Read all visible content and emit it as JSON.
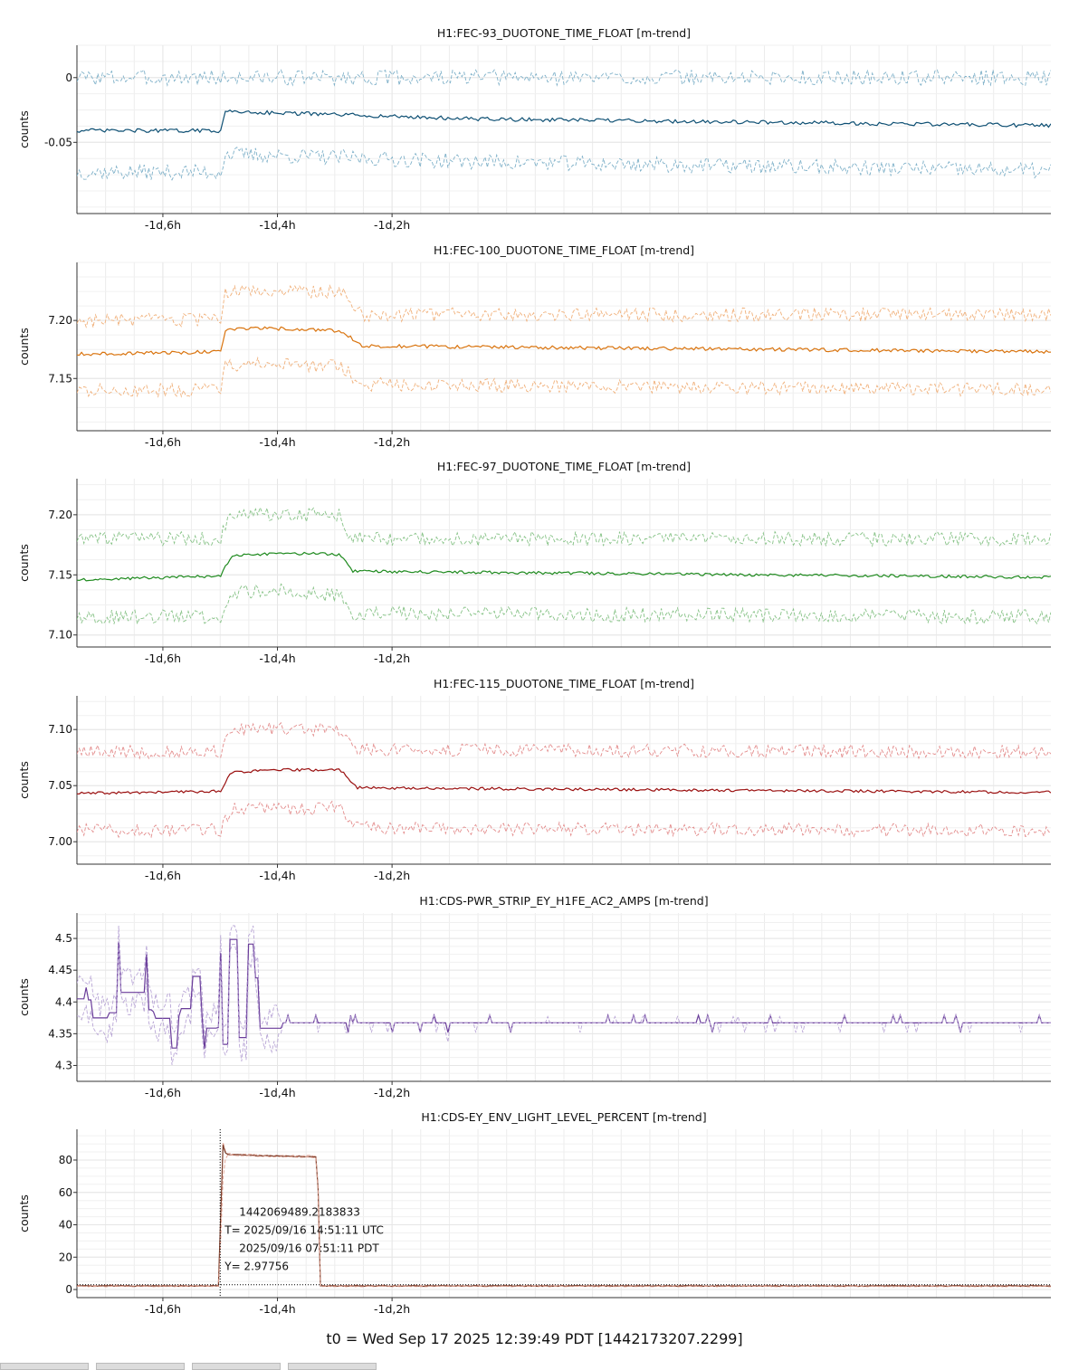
{
  "footer_text": "t0 = Wed Sep 17 2025 12:39:49 PDT [1442173207.2299]",
  "colors": {
    "grid": "#e6e6e6",
    "axis": "#333333",
    "crosshair": "#000000"
  },
  "cursor": {
    "gps": "1442069489.2183833",
    "utc": "T= 2025/09/16 14:51:11 UTC",
    "pdt": "2025/09/16 07:51:11 PDT",
    "y": "Y= 2.97756",
    "x_hours": -1.5,
    "y_value": 2.97756
  },
  "chart_data": [
    {
      "type": "line",
      "title": "H1:FEC-93_DUOTONE_TIME_FLOAT [m-trend]",
      "ylabel": "counts",
      "xlim": [
        -1.75,
        -0.05
      ],
      "ylim": [
        -0.105,
        0.025
      ],
      "yticks": [
        0,
        -0.05
      ],
      "ytick_labels": [
        "0",
        "-0.05"
      ],
      "xticks": [
        -1.6,
        -1.4,
        -1.2
      ],
      "xtick_labels": [
        "-1d,6h",
        "-1d,4h",
        "-1d,2h"
      ],
      "grid": true,
      "pattern": "step",
      "series": [
        {
          "role": "max",
          "color": "#7fb1c9",
          "dashed": true,
          "segments": [
            [
              -1.75,
              0.0
            ],
            [
              -1.5,
              0.0
            ],
            [
              -1.49,
              0.0
            ],
            [
              -1.05,
              0.0
            ],
            [
              -0.05,
              0.0
            ]
          ],
          "noise": 0.006
        },
        {
          "role": "mean",
          "color": "#0d4f73",
          "dashed": false,
          "segments": [
            [
              -1.75,
              -0.041
            ],
            [
              -1.5,
              -0.041
            ],
            [
              -1.49,
              -0.026
            ],
            [
              -1.05,
              -0.032
            ],
            [
              -0.05,
              -0.037
            ]
          ],
          "noise": 0.0015
        },
        {
          "role": "min",
          "color": "#7fb1c9",
          "dashed": true,
          "segments": [
            [
              -1.75,
              -0.073
            ],
            [
              -1.5,
              -0.073
            ],
            [
              -1.49,
              -0.059
            ],
            [
              -1.05,
              -0.065
            ],
            [
              -0.05,
              -0.072
            ]
          ],
          "noise": 0.006
        }
      ]
    },
    {
      "type": "line",
      "title": "H1:FEC-100_DUOTONE_TIME_FLOAT [m-trend]",
      "ylabel": "counts",
      "xlim": [
        -1.75,
        -0.05
      ],
      "ylim": [
        7.105,
        7.25
      ],
      "yticks": [
        7.2,
        7.15
      ],
      "ytick_labels": [
        "7.20",
        "7.15"
      ],
      "xticks": [
        -1.6,
        -1.4,
        -1.2
      ],
      "xtick_labels": [
        "-1d,6h",
        "-1d,4h",
        "-1d,2h"
      ],
      "grid": true,
      "pattern": "plateau",
      "series": [
        {
          "role": "max",
          "color": "#f0b07a",
          "dashed": true,
          "segments": [
            [
              -1.75,
              7.2
            ],
            [
              -1.5,
              7.2
            ],
            [
              -1.49,
              7.225
            ],
            [
              -1.39,
              7.225
            ],
            [
              -1.29,
              7.225
            ],
            [
              -1.25,
              7.205
            ],
            [
              -0.05,
              7.205
            ]
          ],
          "noise": 0.006
        },
        {
          "role": "mean",
          "color": "#d9730d",
          "dashed": false,
          "segments": [
            [
              -1.75,
              7.171
            ],
            [
              -1.5,
              7.173
            ],
            [
              -1.49,
              7.193
            ],
            [
              -1.39,
              7.193
            ],
            [
              -1.29,
              7.191
            ],
            [
              -1.25,
              7.178
            ],
            [
              -0.05,
              7.173
            ]
          ],
          "noise": 0.0015
        },
        {
          "role": "min",
          "color": "#f0b07a",
          "dashed": true,
          "segments": [
            [
              -1.75,
              7.14
            ],
            [
              -1.5,
              7.14
            ],
            [
              -1.49,
              7.162
            ],
            [
              -1.39,
              7.162
            ],
            [
              -1.29,
              7.16
            ],
            [
              -1.25,
              7.145
            ],
            [
              -0.05,
              7.14
            ]
          ],
          "noise": 0.006
        }
      ]
    },
    {
      "type": "line",
      "title": "H1:FEC-97_DUOTONE_TIME_FLOAT [m-trend]",
      "ylabel": "counts",
      "xlim": [
        -1.75,
        -0.05
      ],
      "ylim": [
        7.09,
        7.23
      ],
      "yticks": [
        7.2,
        7.15,
        7.1
      ],
      "ytick_labels": [
        "7.20",
        "7.15",
        "7.10"
      ],
      "xticks": [
        -1.6,
        -1.4,
        -1.2
      ],
      "xtick_labels": [
        "-1d,6h",
        "-1d,4h",
        "-1d,2h"
      ],
      "grid": true,
      "pattern": "plateau",
      "series": [
        {
          "role": "max",
          "color": "#86c286",
          "dashed": true,
          "segments": [
            [
              -1.75,
              7.18
            ],
            [
              -1.5,
              7.18
            ],
            [
              -1.48,
              7.2
            ],
            [
              -1.39,
              7.2
            ],
            [
              -1.29,
              7.2
            ],
            [
              -1.27,
              7.18
            ],
            [
              -0.05,
              7.18
            ]
          ],
          "noise": 0.006
        },
        {
          "role": "mean",
          "color": "#1e8a1e",
          "dashed": false,
          "segments": [
            [
              -1.75,
              7.146
            ],
            [
              -1.5,
              7.149
            ],
            [
              -1.48,
              7.166
            ],
            [
              -1.39,
              7.168
            ],
            [
              -1.29,
              7.167
            ],
            [
              -1.27,
              7.153
            ],
            [
              -0.05,
              7.148
            ]
          ],
          "noise": 0.0012
        },
        {
          "role": "min",
          "color": "#86c286",
          "dashed": true,
          "segments": [
            [
              -1.75,
              7.115
            ],
            [
              -1.5,
              7.115
            ],
            [
              -1.48,
              7.135
            ],
            [
              -1.39,
              7.137
            ],
            [
              -1.29,
              7.132
            ],
            [
              -1.27,
              7.118
            ],
            [
              -0.05,
              7.115
            ]
          ],
          "noise": 0.006
        }
      ]
    },
    {
      "type": "line",
      "title": "H1:FEC-115_DUOTONE_TIME_FLOAT [m-trend]",
      "ylabel": "counts",
      "xlim": [
        -1.75,
        -0.05
      ],
      "ylim": [
        6.98,
        7.13
      ],
      "yticks": [
        7.1,
        7.05,
        7.0
      ],
      "ytick_labels": [
        "7.10",
        "7.05",
        "7.00"
      ],
      "xticks": [
        -1.6,
        -1.4,
        -1.2
      ],
      "xtick_labels": [
        "-1d,6h",
        "-1d,4h",
        "-1d,2h"
      ],
      "grid": true,
      "pattern": "plateau",
      "series": [
        {
          "role": "max",
          "color": "#e38c8c",
          "dashed": true,
          "segments": [
            [
              -1.75,
              7.08
            ],
            [
              -1.5,
              7.08
            ],
            [
              -1.48,
              7.1
            ],
            [
              -1.39,
              7.1
            ],
            [
              -1.29,
              7.1
            ],
            [
              -1.26,
              7.082
            ],
            [
              -0.05,
              7.08
            ]
          ],
          "noise": 0.006
        },
        {
          "role": "mean",
          "color": "#9a0f0f",
          "dashed": false,
          "segments": [
            [
              -1.75,
              7.043
            ],
            [
              -1.5,
              7.045
            ],
            [
              -1.48,
              7.062
            ],
            [
              -1.39,
              7.064
            ],
            [
              -1.29,
              7.064
            ],
            [
              -1.26,
              7.048
            ],
            [
              -0.05,
              7.044
            ]
          ],
          "noise": 0.0012
        },
        {
          "role": "min",
          "color": "#e38c8c",
          "dashed": true,
          "segments": [
            [
              -1.75,
              7.01
            ],
            [
              -1.5,
              7.01
            ],
            [
              -1.48,
              7.03
            ],
            [
              -1.39,
              7.03
            ],
            [
              -1.29,
              7.03
            ],
            [
              -1.26,
              7.012
            ],
            [
              -0.05,
              7.01
            ]
          ],
          "noise": 0.006
        }
      ]
    },
    {
      "type": "line",
      "title": "H1:CDS-PWR_STRIP_EY_H1FE_AC2_AMPS [m-trend]",
      "ylabel": "counts",
      "xlim": [
        -1.75,
        -0.05
      ],
      "ylim": [
        4.275,
        4.54
      ],
      "yticks": [
        4.5,
        4.45,
        4.4,
        4.35,
        4.3
      ],
      "ytick_labels": [
        "4.5",
        "4.45",
        "4.4",
        "4.35",
        "4.3"
      ],
      "xticks": [
        -1.6,
        -1.4,
        -1.2
      ],
      "xtick_labels": [
        "-1d,6h",
        "-1d,4h",
        "-1d,2h"
      ],
      "grid": true,
      "pattern": "oscillate-then-flat",
      "switch_x": -1.39,
      "osc_range": [
        4.31,
        4.5
      ],
      "flat_level": 4.367,
      "series": [
        {
          "role": "max",
          "color": "#b9a6d6",
          "dashed": true
        },
        {
          "role": "mean",
          "color": "#6a3d9a",
          "dashed": false
        },
        {
          "role": "min",
          "color": "#b9a6d6",
          "dashed": true
        }
      ]
    },
    {
      "type": "line",
      "title": "H1:CDS-EY_ENV_LIGHT_LEVEL_PERCENT [m-trend]",
      "ylabel": "counts",
      "xlim": [
        -1.75,
        -0.05
      ],
      "ylim": [
        -5,
        99
      ],
      "yticks": [
        80,
        60,
        40,
        20,
        0
      ],
      "ytick_labels": [
        "80",
        "60",
        "40",
        "20",
        "0"
      ],
      "xticks": [
        -1.6,
        -1.4,
        -1.2
      ],
      "xtick_labels": [
        "-1d,6h",
        "-1d,4h",
        "-1d,2h"
      ],
      "grid": true,
      "pattern": "pulse",
      "series": [
        {
          "role": "max",
          "color": "#e0a090",
          "dashed": true,
          "segments": [
            [
              -1.75,
              2.5
            ],
            [
              -1.5,
              2.5
            ],
            [
              -1.498,
              95
            ],
            [
              -1.49,
              84
            ],
            [
              -1.42,
              83
            ],
            [
              -1.33,
              82.5
            ],
            [
              -1.33,
              82
            ],
            [
              -1.326,
              2.5
            ],
            [
              -0.05,
              2.5
            ]
          ],
          "noise": 0.35
        },
        {
          "role": "mean",
          "color": "#7a3d2a",
          "dashed": false,
          "segments": [
            [
              -1.75,
              2.2
            ],
            [
              -1.5,
              2.2
            ],
            [
              -1.498,
              93
            ],
            [
              -1.49,
              83.5
            ],
            [
              -1.42,
              82.6
            ],
            [
              -1.33,
              82
            ],
            [
              -1.33,
              81.5
            ],
            [
              -1.326,
              2.2
            ],
            [
              -0.05,
              2.2
            ]
          ],
          "noise": 0.25
        },
        {
          "role": "min",
          "color": "#e0a090",
          "dashed": true,
          "segments": [
            [
              -1.75,
              1.9
            ],
            [
              -1.5,
              1.9
            ],
            [
              -1.498,
              60
            ],
            [
              -1.49,
              83
            ],
            [
              -1.42,
              82.2
            ],
            [
              -1.33,
              81.6
            ],
            [
              -1.33,
              81
            ],
            [
              -1.326,
              1.9
            ],
            [
              -0.05,
              1.9
            ]
          ],
          "noise": 0.25
        }
      ]
    }
  ]
}
